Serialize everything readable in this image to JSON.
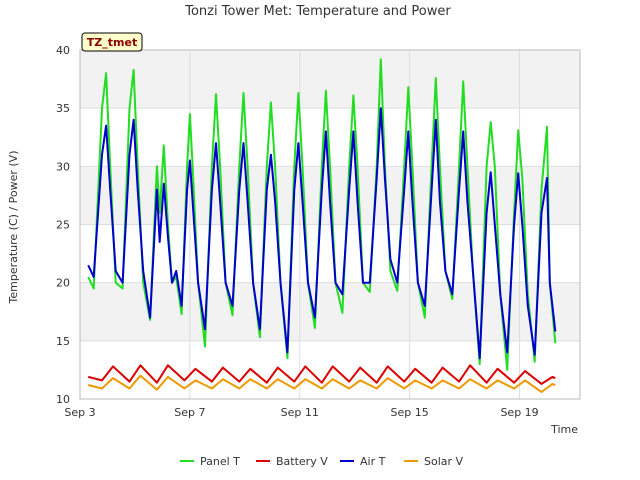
{
  "chart_data": {
    "type": "line",
    "title": "Tonzi Tower Met: Temperature and Power",
    "xlabel": "Time",
    "ylabel": "Temperature (C) / Power (V)",
    "badge": "TZ_tmet",
    "ylim": [
      10,
      40
    ],
    "xlim": [
      3.0,
      21.2
    ],
    "y_ticks": [
      10,
      15,
      20,
      25,
      30,
      35,
      40
    ],
    "x_ticks": [
      {
        "value": 3,
        "label": "Sep 3"
      },
      {
        "value": 7,
        "label": "Sep 7"
      },
      {
        "value": 11,
        "label": "Sep 11"
      },
      {
        "value": 15,
        "label": "Sep 15"
      },
      {
        "value": 19,
        "label": "Sep 19"
      }
    ],
    "grid": true,
    "legend_position": "bottom",
    "series": [
      {
        "name": "Panel T",
        "color": "#22dd22",
        "x": [
          3.3,
          3.5,
          3.8,
          3.95,
          4.1,
          4.3,
          4.55,
          4.8,
          4.95,
          5.1,
          5.3,
          5.55,
          5.8,
          5.9,
          6.05,
          6.2,
          6.35,
          6.5,
          6.7,
          6.9,
          7.0,
          7.1,
          7.3,
          7.55,
          7.8,
          7.95,
          8.1,
          8.3,
          8.55,
          8.8,
          8.95,
          9.1,
          9.3,
          9.55,
          9.8,
          9.95,
          10.1,
          10.3,
          10.55,
          10.8,
          10.95,
          11.1,
          11.3,
          11.55,
          11.8,
          11.95,
          12.1,
          12.3,
          12.55,
          12.8,
          12.95,
          13.1,
          13.3,
          13.55,
          13.8,
          13.95,
          14.1,
          14.3,
          14.55,
          14.8,
          14.95,
          15.1,
          15.3,
          15.55,
          15.8,
          15.95,
          16.1,
          16.3,
          16.55,
          16.8,
          16.95,
          17.1,
          17.3,
          17.55,
          17.8,
          17.95,
          18.1,
          18.3,
          18.55,
          18.8,
          18.95,
          19.1,
          19.3,
          19.55,
          19.8,
          20.0,
          20.1,
          20.3
        ],
        "values": [
          20.5,
          19.5,
          35,
          38,
          30,
          20,
          19.5,
          35,
          38.3,
          30,
          20,
          16.8,
          30,
          26,
          31.8,
          25,
          20,
          20.5,
          17.3,
          30,
          34.5,
          30,
          20,
          14.5,
          30,
          36.2,
          30,
          20,
          17.2,
          30,
          36.3,
          30,
          20,
          15.3,
          30,
          35.5,
          30,
          20,
          13.5,
          30,
          36.3,
          30,
          20,
          16.1,
          30,
          36.5,
          30,
          20,
          17.4,
          30,
          36.1,
          30,
          20,
          19.2,
          30,
          39.2,
          30,
          21,
          19.3,
          30,
          36.8,
          30,
          20,
          17,
          30,
          37.6,
          30,
          21,
          18.6,
          30,
          37.3,
          30,
          21,
          13,
          30,
          33.8,
          30,
          19,
          12.5,
          26,
          33.1,
          29,
          19,
          13.2,
          28,
          33.4,
          20,
          14.8
        ]
      },
      {
        "name": "Battery V",
        "color": "#dd0000",
        "x": [
          3.3,
          3.8,
          4.2,
          4.8,
          5.2,
          5.8,
          6.2,
          6.8,
          7.2,
          7.8,
          8.2,
          8.8,
          9.2,
          9.8,
          10.2,
          10.8,
          11.2,
          11.8,
          12.2,
          12.8,
          13.2,
          13.8,
          14.2,
          14.8,
          15.2,
          15.8,
          16.2,
          16.8,
          17.2,
          17.8,
          18.2,
          18.8,
          19.2,
          19.8,
          20.2,
          20.3
        ],
        "values": [
          11.9,
          11.6,
          12.8,
          11.5,
          12.9,
          11.4,
          12.9,
          11.6,
          12.6,
          11.5,
          12.7,
          11.5,
          12.6,
          11.4,
          12.7,
          11.5,
          12.8,
          11.4,
          12.8,
          11.5,
          12.7,
          11.4,
          12.8,
          11.5,
          12.6,
          11.4,
          12.7,
          11.5,
          12.9,
          11.4,
          12.6,
          11.4,
          12.4,
          11.3,
          11.9,
          11.8
        ]
      },
      {
        "name": "Air T",
        "color": "#0000cc",
        "x": [
          3.3,
          3.5,
          3.8,
          3.95,
          4.1,
          4.3,
          4.55,
          4.8,
          4.95,
          5.1,
          5.3,
          5.55,
          5.8,
          5.9,
          6.05,
          6.2,
          6.35,
          6.5,
          6.7,
          6.9,
          7.0,
          7.1,
          7.3,
          7.55,
          7.8,
          7.95,
          8.1,
          8.3,
          8.55,
          8.8,
          8.95,
          9.1,
          9.3,
          9.55,
          9.8,
          9.95,
          10.1,
          10.3,
          10.55,
          10.8,
          10.95,
          11.1,
          11.3,
          11.55,
          11.8,
          11.95,
          12.1,
          12.3,
          12.55,
          12.8,
          12.95,
          13.1,
          13.3,
          13.55,
          13.8,
          13.95,
          14.1,
          14.3,
          14.55,
          14.8,
          14.95,
          15.1,
          15.3,
          15.55,
          15.8,
          15.95,
          16.1,
          16.3,
          16.55,
          16.8,
          16.95,
          17.1,
          17.3,
          17.55,
          17.8,
          17.95,
          18.1,
          18.3,
          18.55,
          18.8,
          18.95,
          19.1,
          19.3,
          19.55,
          19.8,
          20.0,
          20.1,
          20.3
        ],
        "values": [
          21.5,
          20.5,
          31,
          33.5,
          28,
          21,
          20,
          31,
          34,
          28,
          21,
          17,
          28,
          23.5,
          28.5,
          24,
          20,
          21,
          18,
          28,
          30.5,
          27,
          20,
          16,
          28,
          32,
          27,
          20,
          18,
          28,
          32,
          27,
          20,
          16,
          28,
          31,
          27,
          20,
          14,
          28,
          32,
          27,
          20,
          17,
          28,
          33,
          27,
          20,
          19,
          28,
          33,
          27,
          20,
          20,
          29,
          35,
          29,
          22,
          20,
          28,
          33,
          27,
          20,
          18,
          28,
          34,
          27,
          21,
          19,
          28,
          33,
          27,
          21,
          13.5,
          26,
          29.5,
          25,
          19,
          14,
          25,
          29.4,
          25,
          18,
          13.8,
          26,
          29,
          20,
          15.8
        ]
      },
      {
        "name": "Solar V",
        "color": "#ee9900",
        "x": [
          3.3,
          3.8,
          4.2,
          4.8,
          5.2,
          5.8,
          6.2,
          6.8,
          7.2,
          7.8,
          8.2,
          8.8,
          9.2,
          9.8,
          10.2,
          10.8,
          11.2,
          11.8,
          12.2,
          12.8,
          13.2,
          13.8,
          14.2,
          14.8,
          15.2,
          15.8,
          16.2,
          16.8,
          17.2,
          17.8,
          18.2,
          18.8,
          19.2,
          19.8,
          20.2,
          20.3
        ],
        "values": [
          11.2,
          10.9,
          11.8,
          10.9,
          12.0,
          10.8,
          11.9,
          10.9,
          11.6,
          10.9,
          11.7,
          10.9,
          11.7,
          10.9,
          11.7,
          10.9,
          11.7,
          10.9,
          11.7,
          10.9,
          11.6,
          10.9,
          11.8,
          10.9,
          11.6,
          10.9,
          11.6,
          10.9,
          11.7,
          10.9,
          11.6,
          10.9,
          11.6,
          10.6,
          11.3,
          11.2
        ]
      }
    ]
  }
}
